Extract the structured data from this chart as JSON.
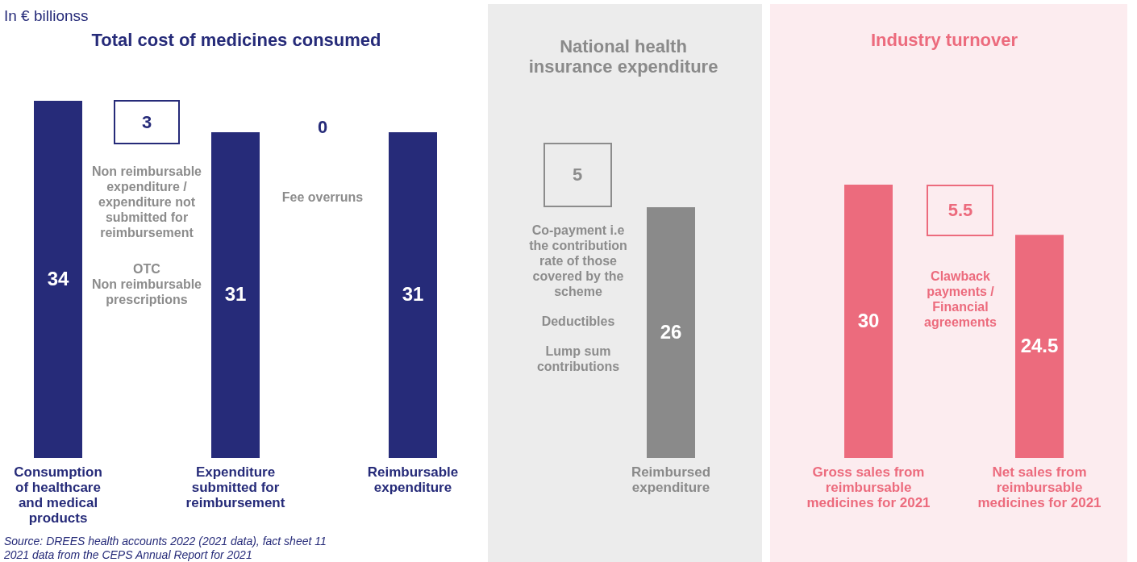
{
  "chart_data": [
    {
      "type": "bar",
      "title": "Total cost of medicines consumed",
      "categories": [
        "Consumption of healthcare and medical products",
        "Expenditure submitted for reimbursement",
        "Reimbursable expenditure"
      ],
      "series": [
        {
          "color": "#262b79",
          "values": [
            34,
            31,
            31
          ]
        }
      ],
      "data_labels": true,
      "annotations": [
        "In € billionss",
        "3",
        "0",
        "Non reimbursable expenditure / expenditure not submitted for reimbursement",
        "OTC",
        "Non reimbursable prescriptions",
        "Fee overruns",
        "Source: DREES health accounts 2022 (2021 data), fact sheet 11",
        "2021 data from the CEPS Annual Report for 2021"
      ]
    },
    {
      "type": "bar",
      "title": "National health insurance expenditure",
      "categories": [
        "Reimbursed expenditure"
      ],
      "series": [
        {
          "color": "#8a8a8a",
          "values": [
            26
          ]
        }
      ],
      "data_labels": true,
      "annotations": [
        "5",
        "Co-payment i.e the contribution rate of those covered by the scheme",
        "Deductibles",
        "Lump sum contributions"
      ]
    },
    {
      "type": "bar",
      "title": "Industry turnover",
      "categories": [
        "Gross sales from reimbursable medicines for 2021",
        "Net sales from reimbursable medicines for 2021"
      ],
      "series": [
        {
          "color": "#ec6b7d",
          "values": [
            30,
            24.5
          ]
        }
      ],
      "data_labels": true,
      "annotations": [
        "5.5",
        "Clawback payments / Financial agreements"
      ]
    }
  ]
}
